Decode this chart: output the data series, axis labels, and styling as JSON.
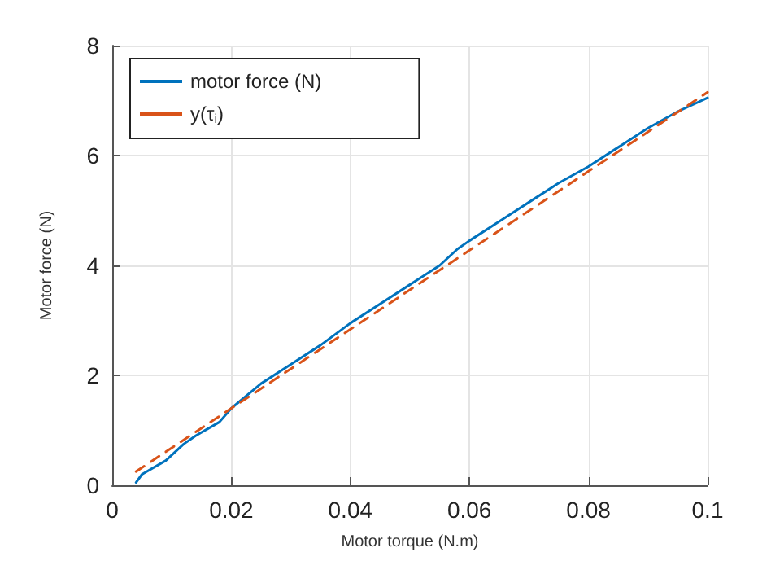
{
  "chart_data": {
    "type": "line",
    "xlabel": "Motor torque (N.m)",
    "ylabel": "Motor force (N)",
    "xlim": [
      0,
      0.1
    ],
    "xticks": [
      0,
      0.02,
      0.04,
      0.06,
      0.08,
      0.1
    ],
    "ylim": [
      0,
      8
    ],
    "yticks": [
      0,
      2,
      4,
      6,
      8
    ],
    "grid": true,
    "legend": "top left",
    "marker": "none",
    "series": [
      {
        "name": "motor force (N)",
        "color": "#0072bd",
        "line_style": "solid",
        "x": [
          0.004,
          0.005,
          0.009,
          0.012,
          0.014,
          0.018,
          0.02,
          0.025,
          0.03,
          0.035,
          0.04,
          0.045,
          0.05,
          0.055,
          0.058,
          0.06,
          0.065,
          0.07,
          0.075,
          0.08,
          0.085,
          0.09,
          0.095,
          0.1
        ],
        "values": [
          0.05,
          0.2,
          0.45,
          0.75,
          0.9,
          1.15,
          1.4,
          1.85,
          2.2,
          2.55,
          2.95,
          3.3,
          3.65,
          4.0,
          4.3,
          4.45,
          4.8,
          5.15,
          5.5,
          5.8,
          6.15,
          6.5,
          6.8,
          7.05
        ]
      },
      {
        "name": "y(τ$_{i}$)",
        "color": "#d95319",
        "line_style": "dashed",
        "x": [
          0.004,
          0.1
        ],
        "values": [
          0.25,
          7.15
        ]
      }
    ]
  }
}
